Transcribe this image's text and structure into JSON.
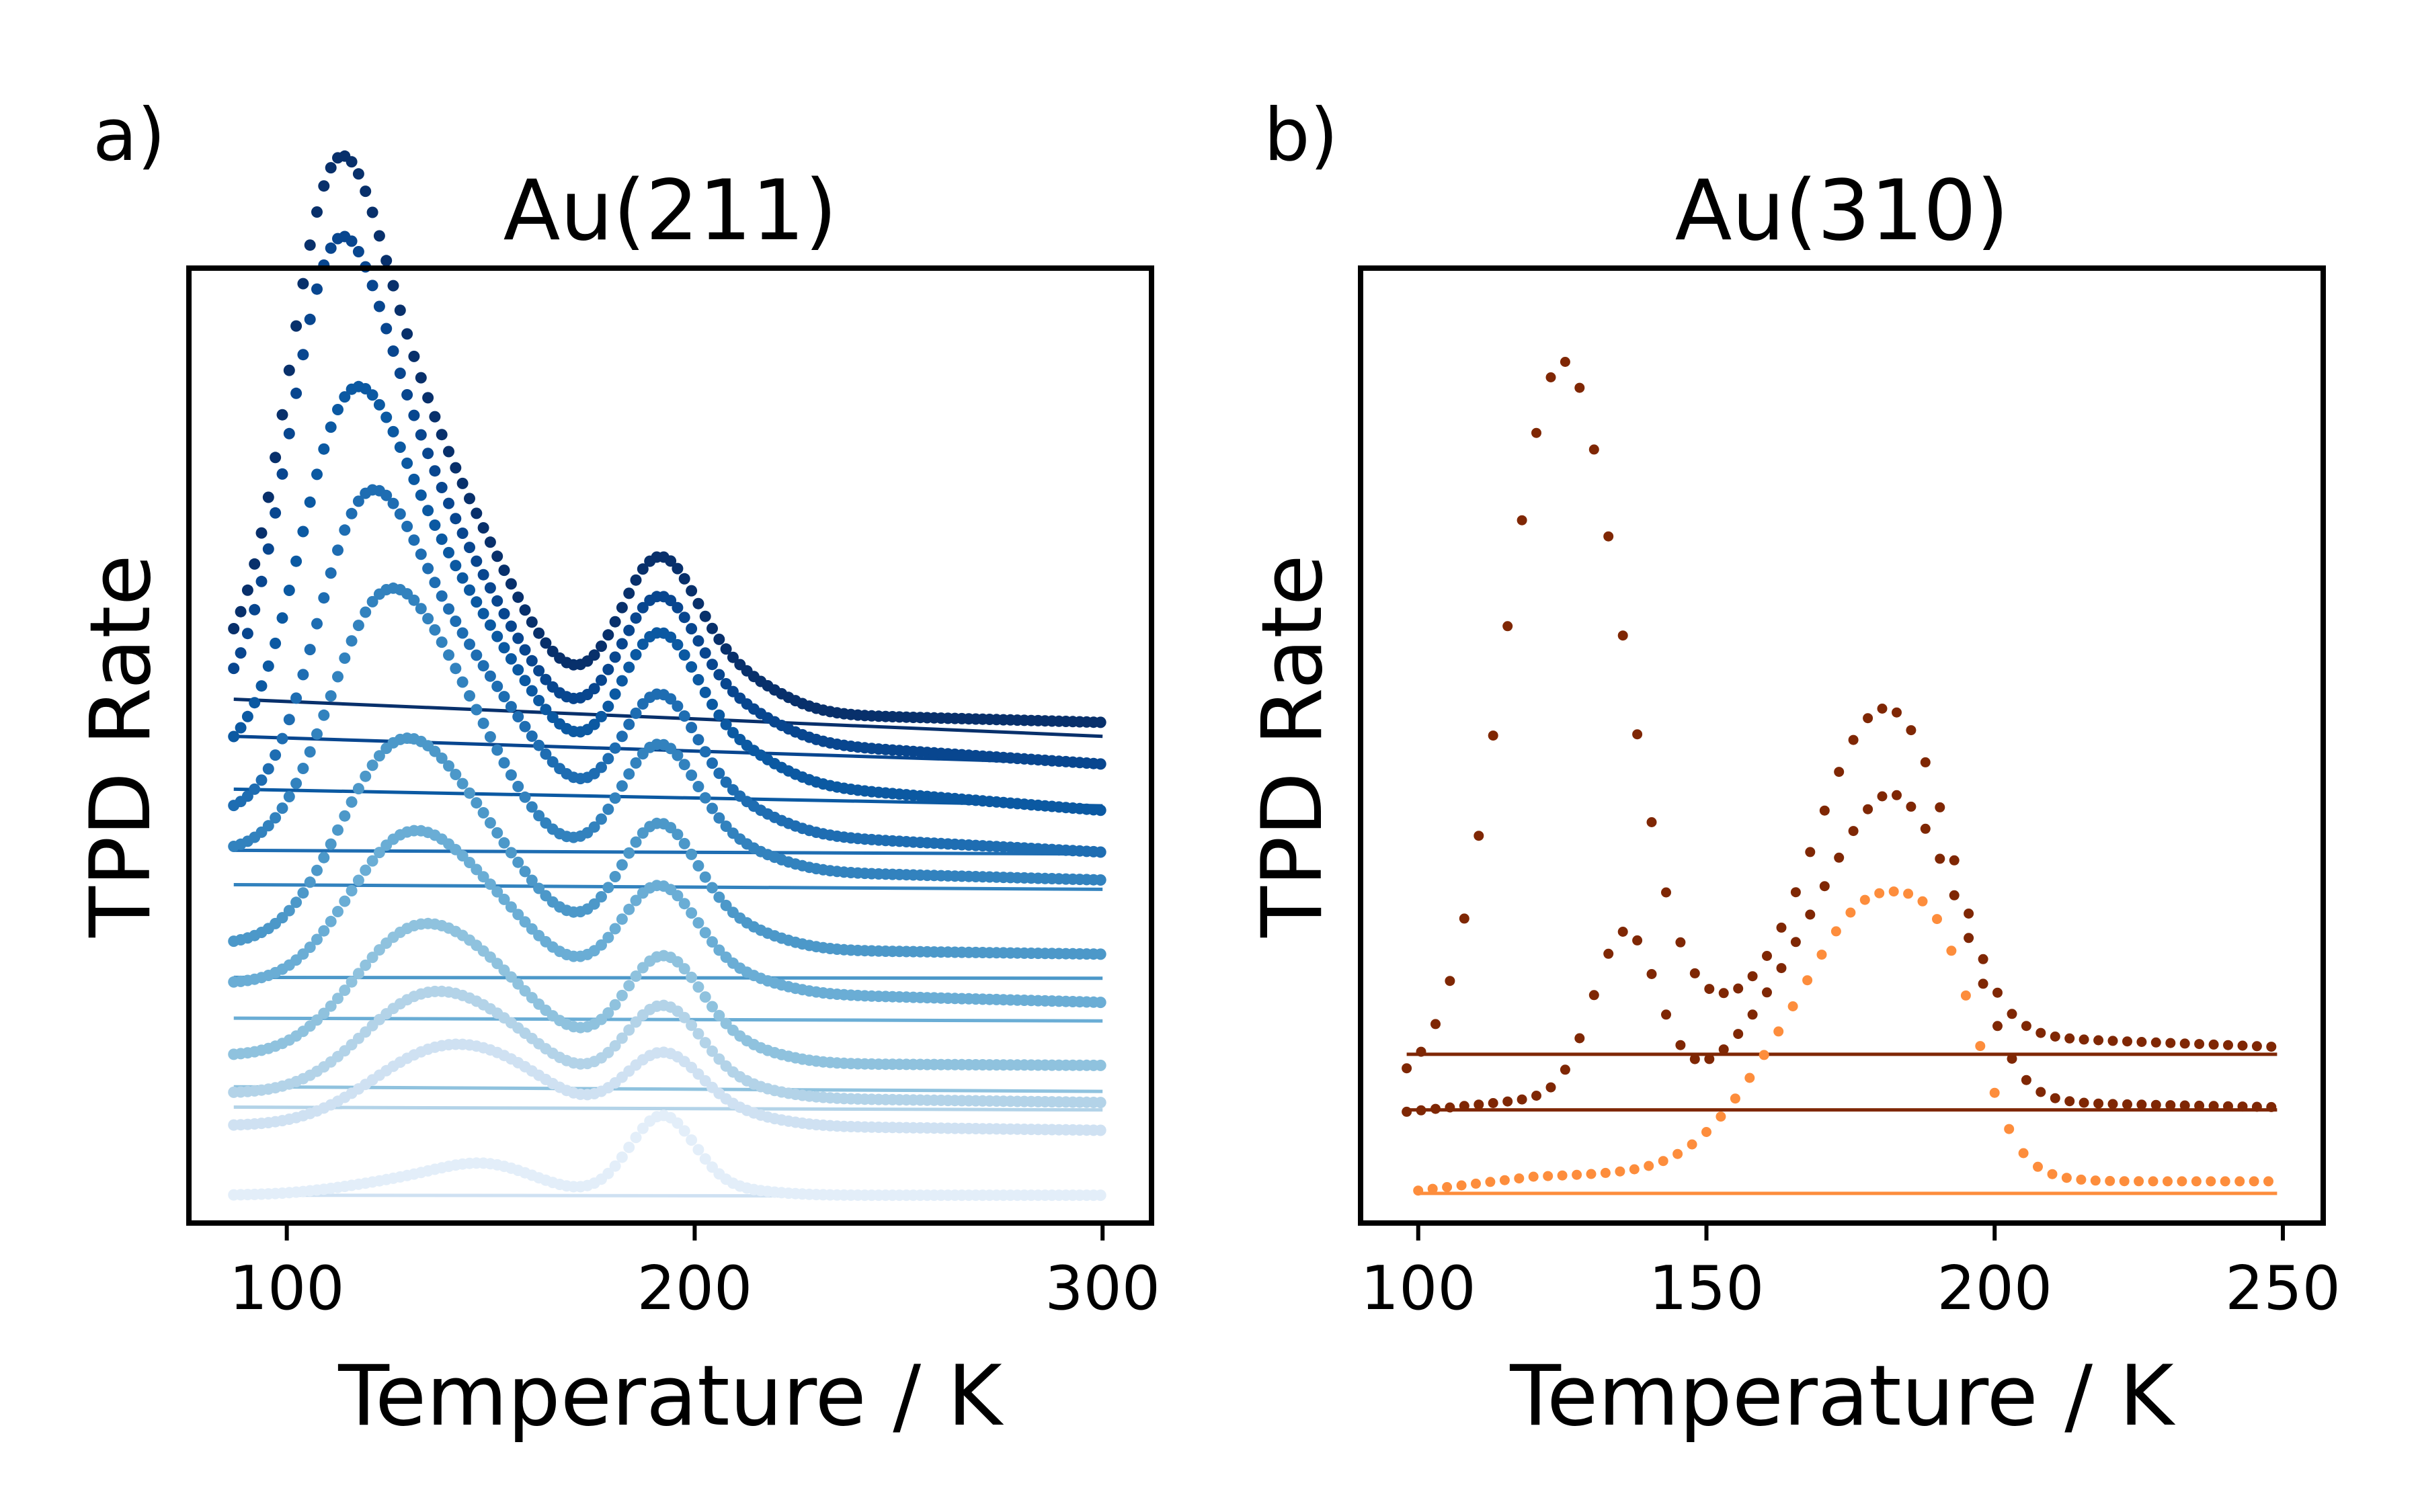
{
  "figure": {
    "panels": [
      {
        "letter": "a)",
        "title": "Au(211)",
        "xlabel": "Temperature / K",
        "ylabel": "TPD Rate"
      },
      {
        "letter": "b)",
        "title": "Au(310)",
        "xlabel": "Temperature / K",
        "ylabel": "TPD Rate"
      }
    ]
  },
  "chart_data": [
    {
      "type": "scatter",
      "title": "Au(211)",
      "xlabel": "Temperature / K",
      "ylabel": "TPD Rate",
      "xlim": [
        76,
        312
      ],
      "ylim": [
        -0.3,
        10.0
      ],
      "xticks": [
        100,
        200,
        300
      ],
      "yticks": [],
      "grid": false,
      "legend": "none",
      "colors": [
        "#08306b",
        "#08468f",
        "#0b59a2",
        "#1e6db2",
        "#3282be",
        "#4c98c9",
        "#6aadd5",
        "#8fc2de",
        "#b3d3e8",
        "#cfe1f2",
        "#e3eef9"
      ],
      "series": [
        {
          "baseline": [
            [
              87,
              5.6
            ],
            [
              215,
              5.2
            ],
            [
              300,
              5.1
            ]
          ],
          "peaks": [
            [
              110,
              4.13,
              11
            ],
            [
              127,
              2.8,
              14
            ],
            [
              150,
              0.9,
              12
            ],
            [
              191,
              1.53,
              9.5
            ],
            [
              210,
              0.35,
              11
            ]
          ]
        },
        {
          "baseline": [
            [
              87,
              5.22
            ],
            [
              215,
              4.9
            ],
            [
              300,
              4.65
            ]
          ],
          "peaks": [
            [
              110,
              3.73,
              11
            ],
            [
              127,
              2.6,
              14
            ],
            [
              150,
              0.8,
              12
            ],
            [
              191,
              1.43,
              9.5
            ],
            [
              210,
              0.3,
              11
            ]
          ]
        },
        {
          "baseline": [
            [
              87,
              4.68
            ],
            [
              215,
              4.45
            ],
            [
              300,
              4.15
            ]
          ],
          "peaks": [
            [
              114,
              3.28,
              12
            ],
            [
              134,
              1.9,
              14
            ],
            [
              155,
              0.6,
              12
            ],
            [
              191,
              1.5,
              9.5
            ],
            [
              210,
              0.3,
              11
            ]
          ]
        },
        {
          "baseline": [
            [
              87,
              4.1
            ],
            [
              215,
              3.9
            ],
            [
              300,
              3.7
            ]
          ],
          "peaks": [
            [
              118,
              2.88,
              12
            ],
            [
              138,
              1.6,
              14
            ],
            [
              158,
              0.5,
              12
            ],
            [
              191,
              1.4,
              9.5
            ],
            [
              210,
              0.25,
              11
            ]
          ]
        },
        {
          "baseline": [
            [
              87,
              3.7
            ],
            [
              215,
              3.5
            ],
            [
              300,
              3.4
            ]
          ],
          "peaks": [
            [
              122,
              2.34,
              13
            ],
            [
              142,
              1.3,
              14
            ],
            [
              191,
              1.28,
              9.5
            ],
            [
              210,
              0.2,
              11
            ]
          ]
        },
        {
          "baseline": [
            [
              87,
              2.7
            ],
            [
              215,
              2.65
            ],
            [
              300,
              2.6
            ]
          ],
          "peaks": [
            [
              126,
              1.93,
              14
            ],
            [
              148,
              0.9,
              14
            ],
            [
              191,
              1.3,
              9.5
            ],
            [
              210,
              0.2,
              11
            ]
          ]
        },
        {
          "baseline": [
            [
              87,
              2.28
            ],
            [
              215,
              2.18
            ],
            [
              300,
              2.08
            ]
          ],
          "peaks": [
            [
              128,
              1.44,
              14
            ],
            [
              150,
              0.7,
              14
            ],
            [
              191,
              1.1,
              9.5
            ],
            [
              210,
              0.15,
              11
            ]
          ]
        },
        {
          "baseline": [
            [
              87,
              1.5
            ],
            [
              215,
              1.42
            ],
            [
              300,
              1.4
            ]
          ],
          "peaks": [
            [
              130,
              1.24,
              15
            ],
            [
              152,
              0.6,
              14
            ],
            [
              192,
              1.1,
              9.5
            ],
            [
              210,
              0.15,
              11
            ]
          ]
        },
        {
          "baseline": [
            [
              87,
              1.1
            ],
            [
              215,
              1.05
            ],
            [
              300,
              1.0
            ]
          ],
          "peaks": [
            [
              132,
              0.93,
              15
            ],
            [
              154,
              0.5,
              14
            ],
            [
              192,
              0.95,
              9.5
            ],
            [
              210,
              0.1,
              11
            ]
          ]
        },
        {
          "baseline": [
            [
              87,
              0.75
            ],
            [
              215,
              0.75
            ],
            [
              300,
              0.7
            ]
          ],
          "peaks": [
            [
              135,
              0.7,
              16
            ],
            [
              156,
              0.4,
              14
            ],
            [
              192,
              0.75,
              9.5
            ],
            [
              210,
              0.1,
              11
            ]
          ]
        },
        {
          "baseline": [
            [
              87,
              0.0
            ],
            [
              215,
              0.0
            ],
            [
              300,
              0.0
            ]
          ],
          "peaks": [
            [
              130,
              0.15,
              16
            ],
            [
              150,
              0.27,
              12
            ],
            [
              192,
              0.85,
              8
            ],
            [
              210,
              0.05,
              10
            ]
          ]
        }
      ],
      "baselines": [
        {
          "x": [
            87,
            300
          ],
          "y": [
            5.35,
            4.95
          ]
        },
        {
          "x": [
            87,
            300
          ],
          "y": [
            4.95,
            4.65
          ]
        },
        {
          "x": [
            87,
            300
          ],
          "y": [
            4.38,
            4.2
          ]
        },
        {
          "x": [
            87,
            300
          ],
          "y": [
            3.72,
            3.68
          ]
        },
        {
          "x": [
            87,
            300
          ],
          "y": [
            3.35,
            3.3
          ]
        },
        {
          "x": [
            87,
            300
          ],
          "y": [
            2.35,
            2.34
          ]
        },
        {
          "x": [
            87,
            300
          ],
          "y": [
            1.91,
            1.88
          ]
        },
        {
          "x": [
            87,
            300
          ],
          "y": [
            1.17,
            1.12
          ]
        },
        {
          "x": [
            87,
            300
          ],
          "y": [
            0.95,
            0.92
          ]
        },
        {
          "x": [
            87,
            300
          ],
          "y": [
            0.0,
            -0.01
          ]
        }
      ]
    },
    {
      "type": "scatter",
      "title": "Au(310)",
      "xlabel": "Temperature / K",
      "ylabel": "TPD Rate",
      "xlim": [
        90,
        257
      ],
      "ylim": [
        -0.3,
        10.0
      ],
      "xticks": [
        100,
        150,
        200,
        250
      ],
      "yticks": [],
      "grid": false,
      "legend": "none",
      "colors": [
        "#7f2704",
        "#7f2704",
        "#fd8d3c"
      ],
      "series": [
        {
          "baseline": [
            [
              98,
              1.2
            ],
            [
              180,
              1.6
            ],
            [
              205,
              1.7
            ],
            [
              249,
              1.6
            ]
          ],
          "peaks": [
            [
              124,
              7.15,
              9.5
            ],
            [
              135,
              1.2,
              8
            ],
            [
              152,
              0.3,
              7
            ],
            [
              173,
              1.8,
              10
            ],
            [
              183,
              2.2,
              9
            ],
            [
              190,
              0.6,
              6
            ]
          ]
        },
        {
          "baseline": [
            [
              98,
              0.9
            ],
            [
              130,
              1.1
            ],
            [
              205,
              1.0
            ],
            [
              249,
              0.95
            ]
          ],
          "peaks": [
            [
              136,
              1.74,
              5.5
            ],
            [
              172,
              1.7,
              12
            ],
            [
              185,
              2.2,
              9
            ],
            [
              195,
              0.4,
              5
            ]
          ]
        },
        {
          "baseline": [
            [
              100,
              0.05
            ],
            [
              120,
              0.2
            ],
            [
              140,
              0.25
            ],
            [
              160,
              0.3
            ],
            [
              205,
              0.15
            ],
            [
              249,
              0.15
            ]
          ],
          "peaks": [
            [
              162,
              0.7,
              10
            ],
            [
              180,
              2.75,
              11
            ],
            [
              192,
              1.0,
              6
            ]
          ]
        }
      ],
      "baselines": [
        {
          "x": [
            98,
            249
          ],
          "y": [
            1.52,
            1.52
          ]
        },
        {
          "x": [
            98,
            249
          ],
          "y": [
            0.92,
            0.92
          ]
        },
        {
          "x": [
            100,
            249
          ],
          "y": [
            0.02,
            0.02
          ]
        }
      ]
    }
  ]
}
